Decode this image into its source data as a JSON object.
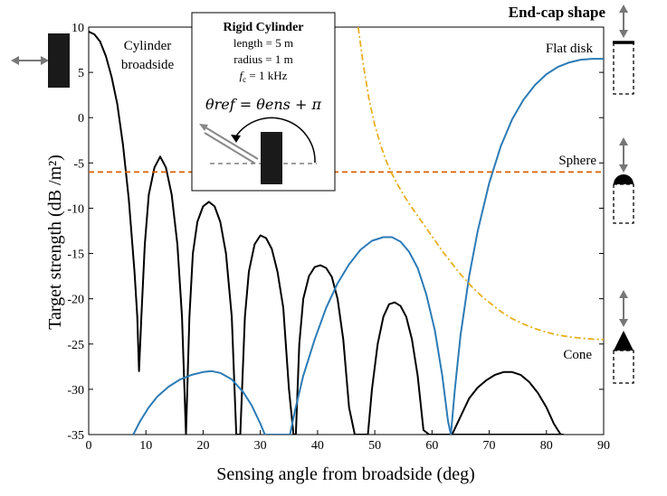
{
  "chart_data": {
    "type": "line",
    "xlabel": "Sensing angle from broadside (deg)",
    "ylabel": "Target strength (dB /m²)",
    "xlim": [
      0,
      90
    ],
    "ylim": [
      -35,
      10
    ],
    "xticks": [
      "0",
      "10",
      "20",
      "30",
      "40",
      "50",
      "60",
      "70",
      "80",
      "90"
    ],
    "yticks": [
      "10",
      "5",
      "0",
      "-5",
      "-10",
      "-15",
      "-20",
      "-25",
      "-30",
      "-35"
    ],
    "grid": false,
    "series": [
      {
        "name": "Cylinder broadside",
        "color": "#000000",
        "style": "solid",
        "x": [
          0,
          1,
          2,
          3,
          4,
          5,
          6,
          7,
          8,
          8.5,
          8.8,
          9.2,
          9.8,
          10.5,
          11.5,
          12.5,
          13.5,
          14.5,
          15.5,
          16.3,
          17.0,
          17.6,
          18.2,
          19.0,
          20.0,
          21.0,
          22.0,
          23.0,
          24.0,
          25.0,
          25.8,
          26.5,
          27.3,
          28.0,
          29.0,
          30.0,
          31.0,
          32.0,
          33.0,
          34.0,
          35.0,
          35.8,
          36.2,
          36.8,
          37.5,
          38.5,
          39.5,
          40.5,
          41.5,
          42.5,
          43.5,
          44.5,
          45.5,
          46.5,
          47.5,
          48.2,
          48.8,
          49.5,
          50.5,
          51.5,
          52.5,
          53.5,
          54.5,
          55.5,
          56.5,
          57.5,
          58.5,
          59.5,
          60.5,
          61.5,
          62.2,
          62.8,
          63.5,
          64.5,
          66,
          68,
          70,
          72,
          74,
          76,
          78,
          80,
          81,
          82,
          82.5,
          83
        ],
        "y": [
          9.5,
          9.2,
          8.4,
          6.8,
          4.5,
          1.5,
          -3.0,
          -9.0,
          -17.0,
          -22.0,
          -28.0,
          -22.0,
          -14.0,
          -8.5,
          -5.5,
          -4.3,
          -5.5,
          -8.5,
          -14.0,
          -22.0,
          -35,
          -22.0,
          -15.0,
          -11.5,
          -9.8,
          -9.3,
          -9.8,
          -11.5,
          -15.0,
          -22.0,
          -35,
          -35,
          -22.0,
          -17.0,
          -14.0,
          -13.0,
          -13.3,
          -14.5,
          -17.0,
          -21.0,
          -30.0,
          -35,
          -35,
          -25.0,
          -20.0,
          -17.5,
          -16.5,
          -16.3,
          -16.6,
          -17.6,
          -20.0,
          -24.5,
          -32.0,
          -35,
          -35,
          -35,
          -35,
          -30.0,
          -25.0,
          -22.0,
          -20.6,
          -20.4,
          -20.8,
          -22.0,
          -24.5,
          -28.5,
          -34.5,
          -35,
          -35,
          -35,
          -35,
          -35,
          -35,
          -35,
          -35,
          -35,
          -35,
          -35,
          -35,
          -35,
          -35,
          -35,
          -35,
          -35,
          -35,
          -35
        ],
        "x2": [
          63.5,
          65,
          66.5,
          68,
          69.5,
          71,
          72.5,
          74,
          75.5,
          77,
          78.5,
          80,
          81.3,
          82.5,
          83
        ],
        "y2": [
          -35,
          -33.0,
          -31.0,
          -29.8,
          -29.0,
          -28.4,
          -28.1,
          -28.1,
          -28.4,
          -29.2,
          -30.4,
          -32.0,
          -33.8,
          -35,
          -35
        ]
      },
      {
        "name": "Flat disk",
        "color": "#2c7bb6",
        "style": "solid",
        "x": [
          7.8,
          9,
          10.5,
          12,
          14,
          16,
          18,
          20,
          21.5,
          23,
          25,
          27,
          28.5,
          30,
          30.8,
          35.2,
          36,
          37.5,
          39.5,
          41.5,
          43.5,
          45.5,
          47.5,
          49.5,
          51.5,
          53,
          54.5,
          56,
          57.5,
          59,
          60.5,
          61.8,
          62.8,
          63.3,
          64,
          65,
          66.5,
          68,
          70,
          72,
          74,
          76,
          78,
          80,
          82,
          84,
          86,
          88,
          90
        ],
        "y": [
          -35,
          -33.5,
          -32.0,
          -30.8,
          -29.7,
          -28.9,
          -28.4,
          -28.1,
          -28.0,
          -28.2,
          -28.9,
          -30.3,
          -31.8,
          -33.8,
          -35,
          -35,
          -32.5,
          -28.5,
          -24.5,
          -21.0,
          -18.3,
          -16.2,
          -14.6,
          -13.6,
          -13.2,
          -13.2,
          -13.7,
          -14.8,
          -16.6,
          -19.5,
          -23.5,
          -28.5,
          -33.5,
          -35,
          -30.0,
          -24.0,
          -17.5,
          -12.5,
          -7.2,
          -3.2,
          -0.2,
          2.0,
          3.6,
          4.8,
          5.6,
          6.1,
          6.4,
          6.5,
          6.5
        ]
      },
      {
        "name": "Sphere",
        "color": "#d95f02",
        "style": "dashed",
        "x": [
          0,
          90
        ],
        "y": [
          -6,
          -6
        ]
      },
      {
        "name": "Cone",
        "color": "#e6b020",
        "style": "dashdot",
        "x": [
          47.1,
          48,
          49,
          50,
          51,
          52,
          53,
          54,
          55,
          56,
          57,
          58,
          59,
          60,
          61,
          62,
          63,
          64,
          65,
          66,
          67,
          68,
          69,
          70,
          72,
          74,
          76,
          78,
          80,
          82,
          84,
          86,
          88,
          90
        ],
        "y": [
          10,
          5.8,
          2.0,
          -0.8,
          -3.0,
          -4.8,
          -6.2,
          -7.4,
          -8.5,
          -9.5,
          -10.4,
          -11.3,
          -12.2,
          -13.1,
          -14.0,
          -14.9,
          -15.7,
          -16.5,
          -17.3,
          -18.0,
          -18.7,
          -19.3,
          -19.9,
          -20.4,
          -21.4,
          -22.2,
          -22.8,
          -23.3,
          -23.7,
          -24.0,
          -24.2,
          -24.35,
          -24.45,
          -24.5
        ]
      }
    ],
    "annotations": {
      "cylinder_broadside": [
        "Cylinder",
        "broadside"
      ],
      "flat_disk": "Flat disk",
      "sphere": "Sphere",
      "cone": "Cone",
      "endcap_title": "End-cap shape"
    },
    "inset": {
      "title": "Rigid Cylinder",
      "lines": [
        "length = 5 m",
        "radius = 1 m"
      ],
      "fc_label": "1 kHz",
      "equation": "θref = θens + π"
    }
  }
}
